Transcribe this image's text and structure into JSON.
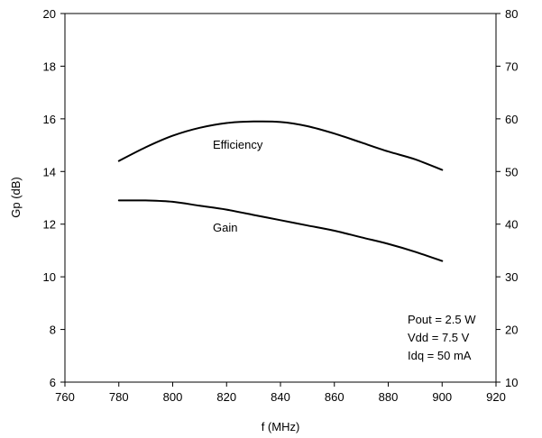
{
  "chart_data": {
    "type": "line",
    "title": "",
    "xlabel": "f (MHz)",
    "ylabel": "Gp (dB)",
    "y2label": "",
    "xlim": [
      760,
      920
    ],
    "ylim": [
      6,
      20
    ],
    "y2lim": [
      10,
      80
    ],
    "x_ticks": [
      760,
      780,
      800,
      820,
      840,
      860,
      880,
      900,
      920
    ],
    "y_ticks": [
      6,
      8,
      10,
      12,
      14,
      16,
      18,
      20
    ],
    "y2_ticks": [
      10,
      20,
      30,
      40,
      50,
      60,
      70,
      80
    ],
    "grid": false,
    "legend": "none",
    "series": [
      {
        "label": "Gain",
        "axis": "left",
        "x": [
          780,
          790,
          800,
          810,
          820,
          830,
          840,
          850,
          860,
          870,
          880,
          890,
          900
        ],
        "y": [
          12.9,
          12.9,
          12.85,
          12.7,
          12.55,
          12.35,
          12.15,
          11.95,
          11.75,
          11.5,
          11.25,
          10.95,
          10.6
        ]
      },
      {
        "label": "Efficiency",
        "axis": "right",
        "x": [
          780,
          790,
          800,
          810,
          820,
          830,
          840,
          850,
          860,
          870,
          880,
          890,
          900
        ],
        "y": [
          52,
          54.6,
          56.8,
          58.3,
          59.2,
          59.5,
          59.4,
          58.6,
          57.2,
          55.5,
          53.8,
          52.3,
          50.3
        ]
      }
    ],
    "annotation_lines": [
      "Pout = 2.5 W",
      "Vdd = 7.5 V",
      "Idq = 50 mA"
    ]
  }
}
